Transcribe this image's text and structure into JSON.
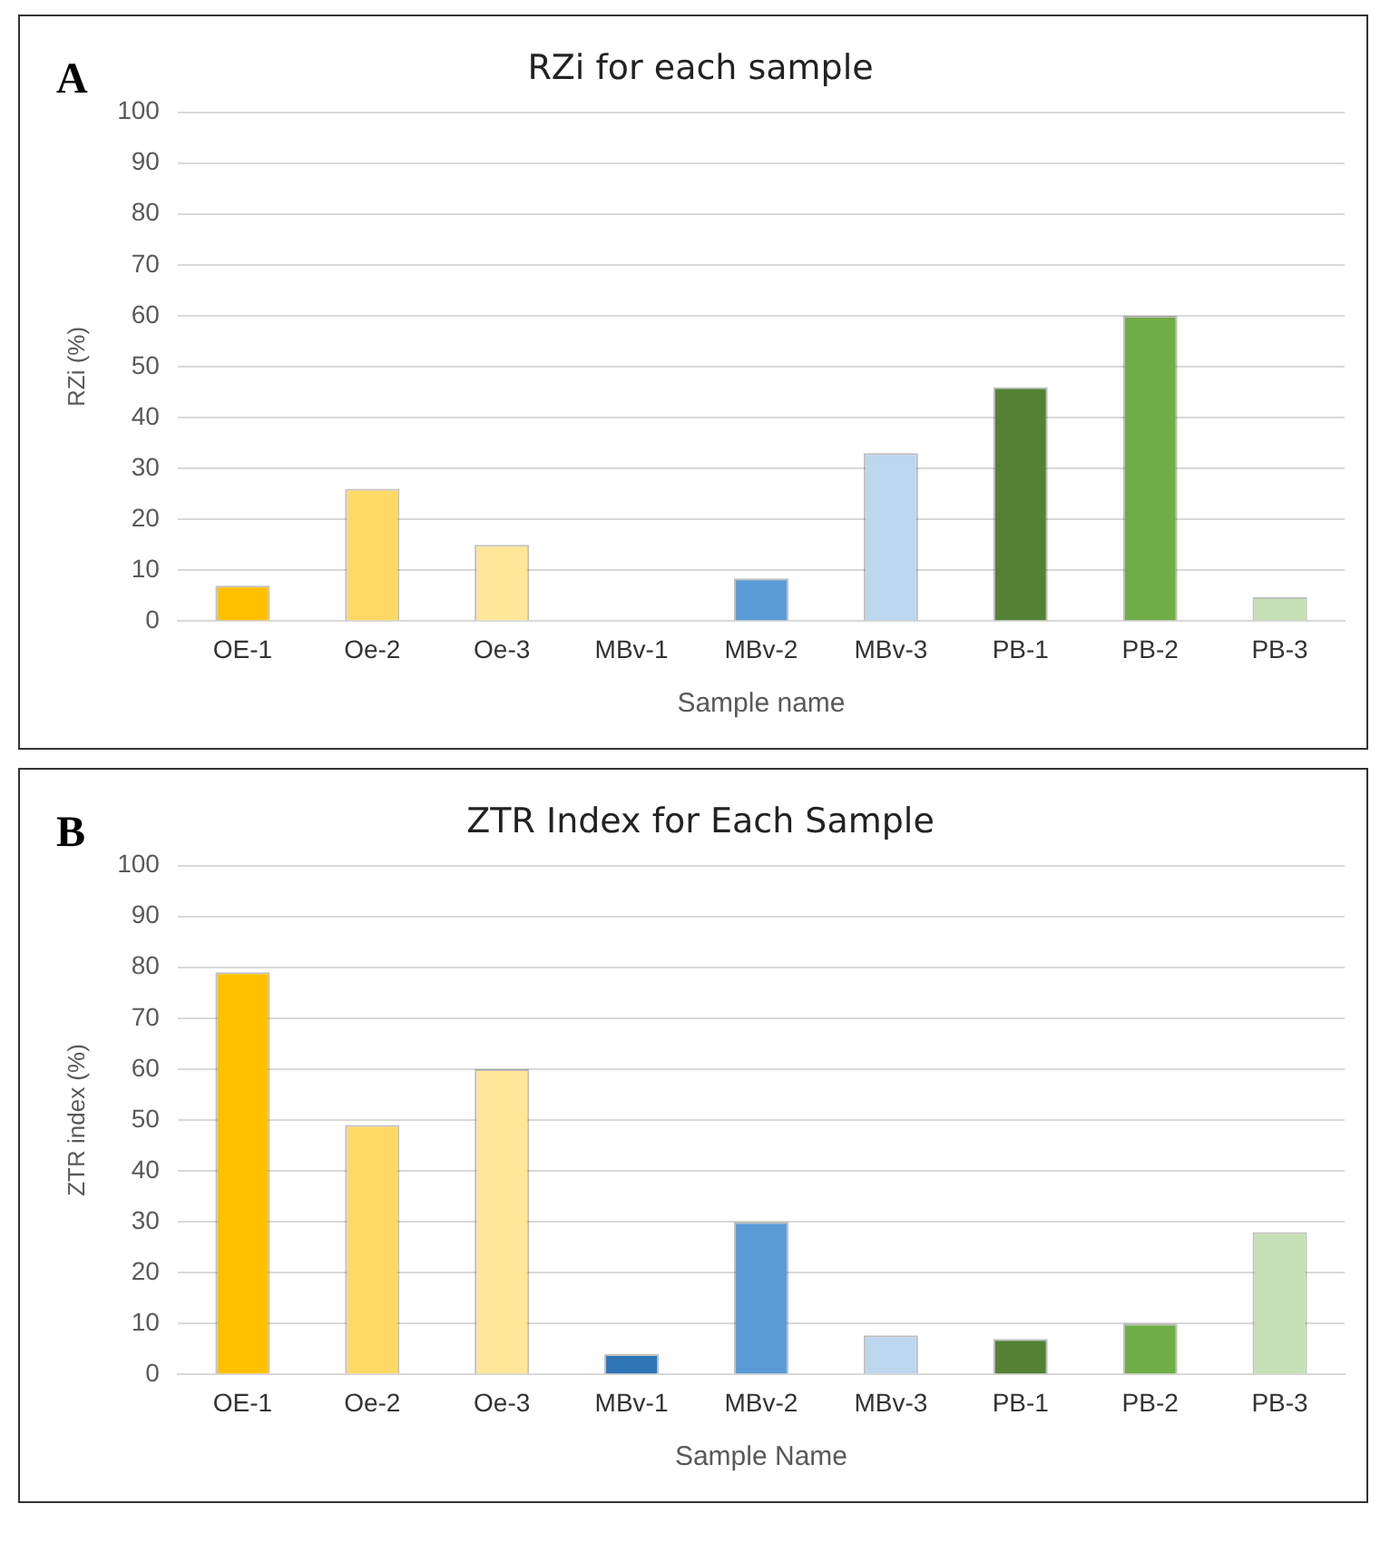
{
  "chart_data": [
    {
      "type": "bar",
      "title": "RZi for each sample",
      "xlabel": "Sample name",
      "ylabel": "RZi (%)",
      "annotations": [
        "A"
      ],
      "categories": [
        "OE-1",
        "Oe-2",
        "Oe-3",
        "MBv-1",
        "MBv-2",
        "MBv-3",
        "PB-1",
        "PB-2",
        "PB-3"
      ],
      "values": [
        7,
        26,
        15,
        0,
        8.4,
        33,
        46,
        60,
        4.7
      ],
      "colors": [
        "#ffc000",
        "#ffd966",
        "#ffe699",
        "#2e75b6",
        "#5b9bd5",
        "#bdd7ee",
        "#548235",
        "#70ad47",
        "#c5e0b4"
      ],
      "ylim": [
        0,
        100
      ],
      "yticks": [
        0,
        10,
        20,
        30,
        40,
        50,
        60,
        70,
        80,
        90,
        100
      ],
      "grid": "y",
      "legend": false
    },
    {
      "type": "bar",
      "title": "ZTR Index for Each Sample",
      "xlabel": "Sample Name",
      "ylabel": "ZTR index (%)",
      "annotations": [
        "B"
      ],
      "categories": [
        "OE-1",
        "Oe-2",
        "Oe-3",
        "MBv-1",
        "MBv-2",
        "MBv-3",
        "PB-1",
        "PB-2",
        "PB-3"
      ],
      "values": [
        79,
        49,
        60,
        4,
        30,
        7.7,
        7,
        10,
        28
      ],
      "colors": [
        "#ffc000",
        "#ffd966",
        "#ffe699",
        "#2e75b6",
        "#5b9bd5",
        "#bdd7ee",
        "#548235",
        "#70ad47",
        "#c5e0b4"
      ],
      "ylim": [
        0,
        100
      ],
      "yticks": [
        0,
        10,
        20,
        30,
        40,
        50,
        60,
        70,
        80,
        90,
        100
      ],
      "grid": "y",
      "legend": false
    }
  ]
}
